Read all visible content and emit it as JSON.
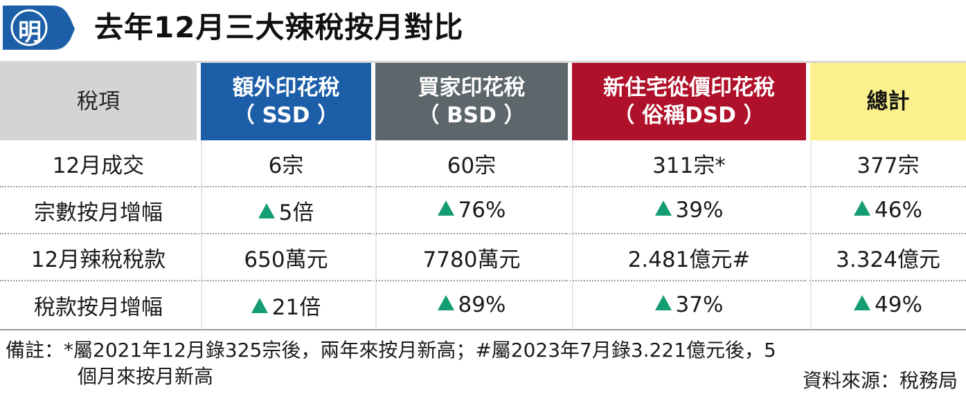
{
  "header": {
    "logo_char": "明",
    "title": "去年12月三大辣稅按月對比"
  },
  "colors": {
    "ssd": "#1c5fa8",
    "bsd": "#5d676b",
    "dsd": "#b0112a",
    "total": "#fbf08c",
    "label_header": "#d3d4d6",
    "increase_arrow": "#149c72",
    "logo": "#1c5fa8"
  },
  "table": {
    "header": {
      "label": "稅項",
      "ssd": {
        "line1": "額外印花稅",
        "line2": "（ SSD ）"
      },
      "bsd": {
        "line1": "買家印花稅",
        "line2": "（ BSD ）"
      },
      "dsd": {
        "line1": "新住宅從價印花稅",
        "line2": "（ 俗稱DSD ）"
      },
      "total": {
        "line1": "總計"
      }
    },
    "rows": [
      {
        "label": "12月成交",
        "ssd": "6宗",
        "bsd": "60宗",
        "dsd": "311宗*",
        "total": "377宗"
      },
      {
        "label": "宗數按月增幅",
        "ssd": "5倍",
        "bsd": "76%",
        "dsd": "39%",
        "total": "46%"
      },
      {
        "label": "12月辣稅稅款",
        "ssd": "650萬元",
        "bsd": "7780萬元",
        "dsd": "2.481億元#",
        "total": "3.324億元"
      },
      {
        "label": "稅款按月增幅",
        "ssd": "21倍",
        "bsd": "89%",
        "dsd": "37%",
        "total": "49%"
      }
    ]
  },
  "notes": {
    "line1": "備註：*屬2021年12月錄325宗後，兩年來按月新高；#屬2023年7月錄3.221億元後，5",
    "line2": "個月來按月新高",
    "source": "資料來源：稅務局"
  }
}
